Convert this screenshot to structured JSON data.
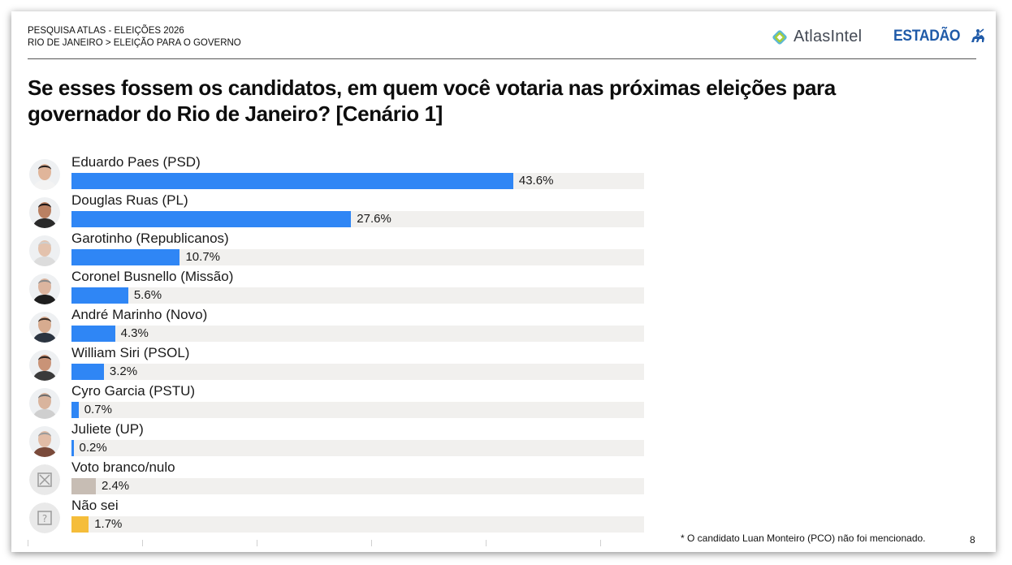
{
  "header": {
    "survey_line1": "PESQUISA ATLAS - ELEIÇÕES 2026",
    "survey_line2": "RIO DE JANEIRO > ELEIÇÃO PARA O GOVERNO",
    "atlas_logo_text": "AtlasIntel",
    "estadao_logo_text": "ESTADÃO"
  },
  "question": "Se esses fossem os candidatos, em quem você votaria nas próximas eleições para governador do Rio de Janeiro? [Cenário 1]",
  "chart_data": {
    "type": "bar",
    "orientation": "horizontal",
    "xlim": [
      0,
      50
    ],
    "categories": [
      "Eduardo Paes (PSD)",
      "Douglas Ruas (PL)",
      "Garotinho (Republicanos)",
      "Coronel Busnello (Missão)",
      "André Marinho (Novo)",
      "William Siri (PSOL)",
      "Cyro Garcia (PSTU)",
      "Juliete (UP)",
      "Voto branco/nulo",
      "Não sei"
    ],
    "values": [
      43.6,
      27.6,
      10.7,
      5.6,
      4.3,
      3.2,
      0.7,
      0.2,
      2.4,
      1.7
    ],
    "value_labels": [
      "43.6%",
      "27.6%",
      "10.7%",
      "5.6%",
      "4.3%",
      "3.2%",
      "0.7%",
      "0.2%",
      "2.4%",
      "1.7%"
    ],
    "bar_colors": [
      "#2f86f5",
      "#2f86f5",
      "#2f86f5",
      "#2f86f5",
      "#2f86f5",
      "#2f86f5",
      "#2f86f5",
      "#2f86f5",
      "#c7bdb4",
      "#f5bd3a"
    ],
    "avatar_icons": [
      "candidate-photo",
      "candidate-photo",
      "candidate-photo",
      "candidate-photo",
      "candidate-photo",
      "candidate-photo",
      "candidate-photo",
      "candidate-photo",
      "blank-vote-icon",
      "question-mark-icon"
    ],
    "track_color": "#f1f0ee"
  },
  "footnote": "* O candidato Luan Monteiro (PCO) não foi mencionado.",
  "page_number": "8"
}
